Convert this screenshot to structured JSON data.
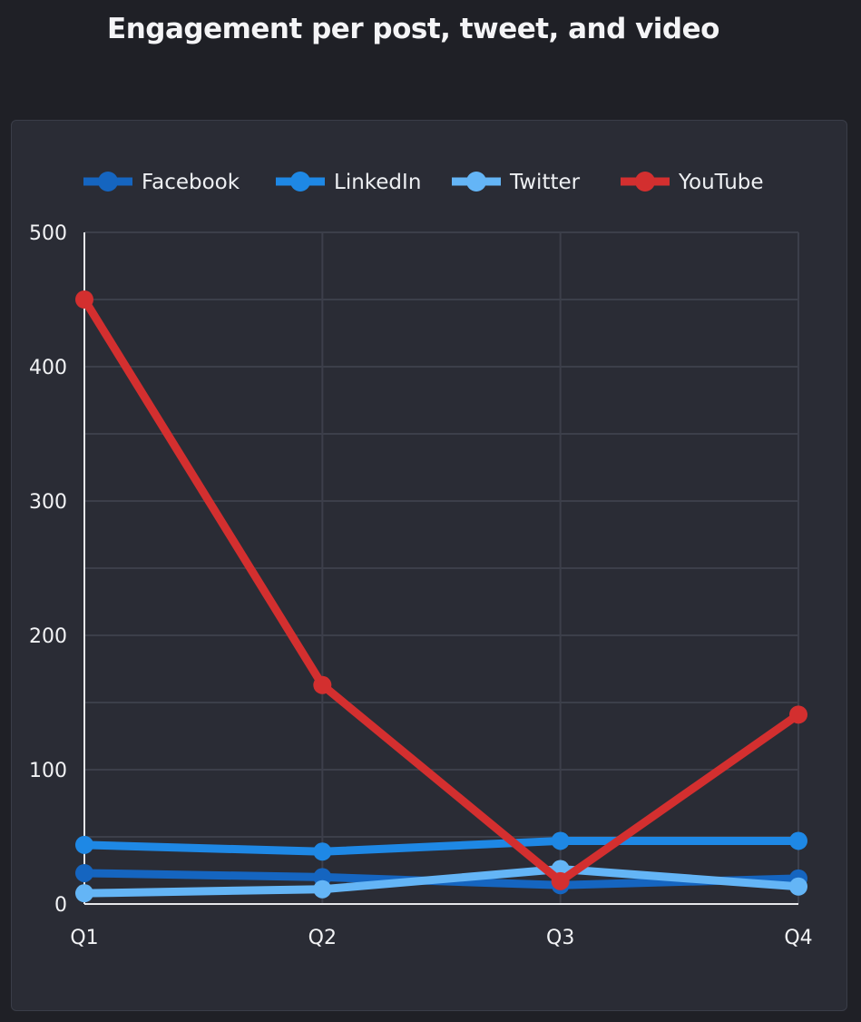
{
  "chart_data": {
    "type": "line",
    "title": "Engagement per post, tweet, and video",
    "categories": [
      "Q1",
      "Q2",
      "Q3",
      "Q4"
    ],
    "ylim": [
      0,
      500
    ],
    "yticks": [
      0,
      100,
      200,
      300,
      400,
      500
    ],
    "grid": true,
    "legend_position": "top",
    "series": [
      {
        "name": "Facebook",
        "color": "#1565c0",
        "values": [
          23,
          20,
          14,
          19
        ]
      },
      {
        "name": "LinkedIn",
        "color": "#1e88e5",
        "values": [
          44,
          39,
          47,
          47
        ]
      },
      {
        "name": "Twitter",
        "color": "#64b5f6",
        "values": [
          8,
          11,
          26,
          13
        ]
      },
      {
        "name": "YouTube",
        "color": "#d32f2f",
        "values": [
          450,
          163,
          17,
          141
        ]
      }
    ]
  }
}
